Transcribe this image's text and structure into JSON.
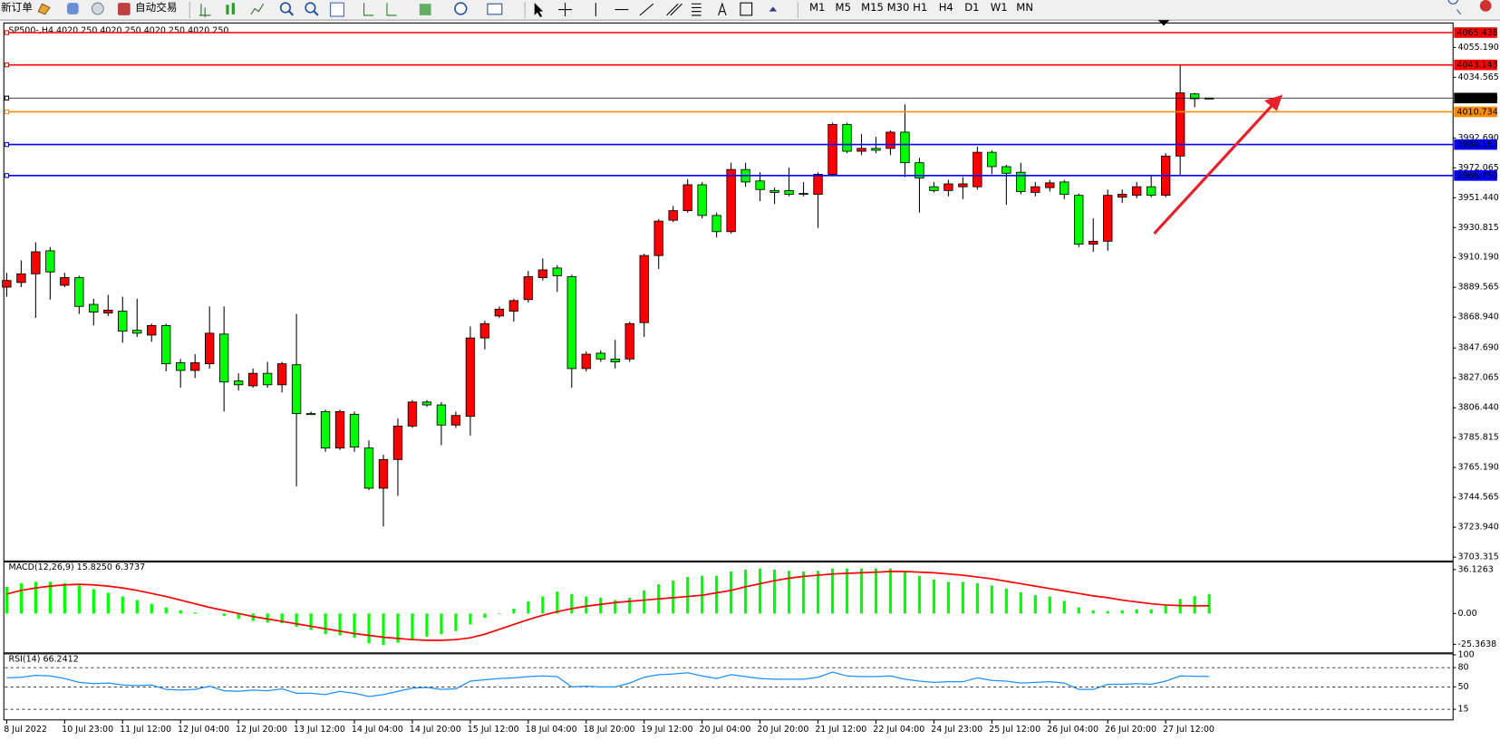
{
  "toolbar": {
    "new_order": "新订单",
    "auto_trading": "自动交易",
    "timeframes": [
      "M1",
      "M5",
      "M15",
      "M30",
      "H1",
      "H4",
      "D1",
      "W1",
      "MN"
    ]
  },
  "chart_data": [
    {
      "type": "candlestick",
      "title": "SP500-,H4  4020.250 4020.250 4020.250 4020.250",
      "categories": [
        "8 Jul 2022",
        null,
        null,
        null,
        "10 Jul 23:00",
        null,
        null,
        null,
        "11 Jul 12:00",
        null,
        null,
        null,
        "12 Jul 04:00",
        null,
        null,
        null,
        "12 Jul 20:00",
        null,
        null,
        null,
        "13 Jul 12:00",
        null,
        null,
        null,
        "14 Jul 04:00",
        null,
        null,
        null,
        "14 Jul 20:00",
        null,
        null,
        null,
        "15 Jul 12:00",
        null,
        null,
        null,
        "18 Jul 04:00",
        null,
        null,
        null,
        "18 Jul 20:00",
        null,
        null,
        null,
        "19 Jul 12:00",
        null,
        null,
        null,
        "20 Jul 04:00",
        null,
        null,
        null,
        "20 Jul 20:00",
        null,
        null,
        null,
        "21 Jul 12:00",
        null,
        null,
        null,
        "22 Jul 04:00",
        null,
        null,
        null,
        "24 Jul 23:00",
        null,
        null,
        null,
        "25 Jul 12:00",
        null,
        null,
        null,
        "26 Jul 04:00",
        null,
        null,
        null,
        "26 Jul 20:00",
        null,
        null,
        null,
        "27 Jul 12:00",
        null,
        null,
        null
      ],
      "open": [
        3889.7,
        3892.9,
        3898.9,
        3914.8,
        3891.0,
        3896.3,
        3877.8,
        3871.8,
        3873.1,
        3859.9,
        3856.6,
        3863.2,
        3837.5,
        3832.2,
        3836.8,
        3857.3,
        3824.9,
        3821.6,
        3830.2,
        3822.3,
        3836.1,
        3802.4,
        3803.8,
        3778.6,
        3801.8,
        3778.6,
        3750.9,
        3770.7,
        3793.8,
        3810.4,
        3808.4,
        3794.5,
        3800.5,
        3854.6,
        3869.8,
        3873.1,
        3881.1,
        3896.3,
        3902.9,
        3896.9,
        3833.5,
        3844.1,
        3840.1,
        3840.1,
        3865.2,
        3911.5,
        3935.9,
        3942.5,
        3960.4,
        3939.2,
        3928.0,
        3970.9,
        3963.0,
        3956.4,
        3956.4,
        3954.4,
        3953.8,
        3967.6,
        4002.0,
        3983.5,
        3985.5,
        3985.5,
        3996.7,
        3975.6,
        3959.0,
        3956.4,
        3959.0,
        3959.0,
        3982.8,
        3972.9,
        3969.0,
        3955.1,
        3958.4,
        3962.3,
        3953.1,
        3919.4,
        3921.4,
        3951.8,
        3953.1,
        3959.0,
        3953.1,
        3980.2,
        4023.1,
        4020.25
      ],
      "high": [
        3899.6,
        3908.2,
        3920.7,
        3917.4,
        3899.6,
        3897.6,
        3881.7,
        3884.4,
        3883.1,
        3881.7,
        3864.5,
        3864.5,
        3840.1,
        3843.4,
        3876.4,
        3876.4,
        3830.2,
        3833.5,
        3838.1,
        3838.1,
        3871.2,
        3803.8,
        3805.1,
        3805.1,
        3803.8,
        3783.9,
        3774.0,
        3799.1,
        3811.7,
        3811.7,
        3810.4,
        3803.8,
        3862.6,
        3866.5,
        3876.4,
        3881.7,
        3900.9,
        3909.5,
        3904.9,
        3898.3,
        3845.4,
        3846.0,
        3853.3,
        3865.9,
        3912.8,
        3936.6,
        3945.8,
        3964.3,
        3962.3,
        3941.2,
        3975.6,
        3975.6,
        3969.0,
        3958.4,
        3972.3,
        3962.3,
        3969.0,
        4003.3,
        4003.3,
        3995.4,
        3993.4,
        3998.0,
        4015.9,
        3978.9,
        3962.3,
        3963.7,
        3965.7,
        3986.8,
        3984.2,
        3974.2,
        3975.6,
        3962.3,
        3963.7,
        3963.7,
        3954.4,
        3937.2,
        3957.1,
        3957.1,
        3962.3,
        3967.0,
        3982.2,
        4043.0,
        4023.8,
        4020.25
      ],
      "low": [
        3883.1,
        3889.7,
        3868.5,
        3881.1,
        3889.7,
        3871.2,
        3863.2,
        3869.8,
        3851.3,
        3855.3,
        3852.0,
        3831.5,
        3820.3,
        3826.9,
        3833.5,
        3803.8,
        3818.3,
        3820.3,
        3820.3,
        3817.0,
        3752.2,
        3801.8,
        3776.0,
        3777.3,
        3776.0,
        3749.6,
        3724.5,
        3745.6,
        3792.5,
        3807.1,
        3780.6,
        3792.5,
        3787.2,
        3846.7,
        3868.5,
        3865.9,
        3879.1,
        3894.3,
        3886.4,
        3820.3,
        3831.5,
        3838.1,
        3833.5,
        3838.1,
        3855.3,
        3902.2,
        3934.6,
        3941.2,
        3937.2,
        3924.0,
        3926.7,
        3959.0,
        3949.1,
        3947.1,
        3952.4,
        3952.4,
        3930.6,
        3966.3,
        3982.2,
        3980.9,
        3982.2,
        3980.9,
        3965.7,
        3941.2,
        3955.1,
        3952.4,
        3950.5,
        3957.1,
        3967.6,
        3946.5,
        3953.8,
        3952.4,
        3955.7,
        3950.5,
        3917.4,
        3914.1,
        3914.8,
        3947.8,
        3951.1,
        3951.8,
        3951.8,
        3967.0,
        4013.9,
        4020.25
      ],
      "close": [
        3894.3,
        3898.9,
        3914.1,
        3900.2,
        3896.3,
        3876.4,
        3872.5,
        3873.8,
        3859.3,
        3857.9,
        3863.2,
        3836.8,
        3832.2,
        3837.5,
        3857.9,
        3824.2,
        3822.3,
        3830.2,
        3822.3,
        3836.8,
        3802.4,
        3802.0,
        3778.6,
        3803.8,
        3779.3,
        3750.9,
        3770.7,
        3793.8,
        3810.4,
        3808.4,
        3794.5,
        3801.1,
        3854.6,
        3864.5,
        3874.5,
        3880.4,
        3896.9,
        3901.6,
        3897.6,
        3833.5,
        3843.4,
        3840.1,
        3838.1,
        3864.5,
        3911.5,
        3935.3,
        3942.5,
        3960.4,
        3939.2,
        3928.0,
        3970.9,
        3962.3,
        3957.1,
        3955.1,
        3953.8,
        3953.8,
        3967.6,
        4002.0,
        3983.5,
        3985.5,
        3984.2,
        3996.7,
        3975.6,
        3965.0,
        3956.4,
        3961.0,
        3961.0,
        3982.8,
        3972.9,
        3968.3,
        3955.7,
        3959.0,
        3961.7,
        3953.8,
        3919.4,
        3921.4,
        3953.1,
        3953.8,
        3959.0,
        3953.1,
        3980.2,
        4023.8,
        4019.8,
        4020.25
      ],
      "up_color": "#ff0000",
      "down_color": "#00ff00",
      "ylim": [
        3701.3,
        4070.1
      ],
      "yticks": [
        {
          "value": 4055.19,
          "label": "4055.190"
        },
        4034.565,
        {
          "value": 3992.69,
          "label": "3992.690"
        },
        3972.065,
        {
          "value": 3951.44,
          "label": "3951.440"
        },
        3930.815,
        {
          "value": 3910.19,
          "label": "3910.190"
        },
        3889.565,
        {
          "value": 3868.94,
          "label": "3868.940"
        },
        {
          "value": 3847.69,
          "label": "3847.690"
        },
        3827.065,
        {
          "value": 3806.44,
          "label": "3806.440"
        },
        3785.815,
        {
          "value": 3765.19,
          "label": "3765.190"
        },
        3744.565,
        {
          "value": 3723.94,
          "label": "3723.940"
        },
        3703.315
      ],
      "hlines": [
        {
          "value": 4065.438,
          "color": "#ff0000"
        },
        {
          "value": 4043.143,
          "color": "#ff0000"
        },
        {
          "value": 4020.25,
          "label": "4020.250",
          "color": "#000000"
        },
        {
          "value": 4010.734,
          "color": "#ff8c00"
        },
        {
          "value": 3988.163,
          "color": "#0000ff"
        },
        {
          "value": 3966.75,
          "label": "3966.750",
          "color": "#0000ff"
        }
      ]
    },
    {
      "type": "macd",
      "title": "MACD(12,26,9) 15.8250 6.3737",
      "series": [
        {
          "type": "bar",
          "color": "#00ff00",
          "values": [
            22,
            25,
            26,
            26,
            25,
            23,
            20,
            17,
            14,
            11,
            8,
            5,
            2.6,
            1,
            0.3,
            -2,
            -4.4,
            -6,
            -7.5,
            -8,
            -11,
            -13.5,
            -17,
            -18,
            -20,
            -24.5,
            -26,
            -24,
            -21.5,
            -19,
            -17,
            -14.5,
            -9,
            -3.6,
            -0.5,
            4,
            10,
            14,
            18,
            16,
            14,
            13,
            11,
            13,
            19,
            24,
            27,
            30,
            31,
            31,
            34.5,
            36,
            37,
            36,
            35,
            34.5,
            35,
            37,
            37,
            37,
            37,
            37,
            34.5,
            31,
            28,
            26,
            26,
            25,
            23,
            20.5,
            17.4,
            15,
            14,
            10.4,
            5,
            2.6,
            1.9,
            2.6,
            3.4,
            3.4,
            7.3,
            12,
            14.3,
            15.825
          ]
        },
        {
          "type": "line",
          "color": "#ff0000",
          "values": [
            16,
            19,
            21,
            22.5,
            23.5,
            24,
            23.5,
            22.5,
            21,
            19,
            16.5,
            14,
            11,
            8,
            5,
            2.5,
            0,
            -2.5,
            -4.5,
            -6.5,
            -8.5,
            -10.5,
            -12.5,
            -14.5,
            -16.5,
            -18,
            -19.5,
            -20.5,
            -21.5,
            -22,
            -22,
            -21.5,
            -20,
            -17,
            -13,
            -9,
            -5,
            -1.5,
            1.5,
            4,
            6,
            7.5,
            9,
            10,
            11,
            12,
            13,
            14,
            15,
            17,
            19,
            22,
            24.5,
            27,
            29,
            30.5,
            31.5,
            32.5,
            33,
            33.5,
            34,
            34.5,
            34.5,
            34,
            33.5,
            32.5,
            31.5,
            30,
            28.5,
            26.5,
            24.5,
            22.5,
            20.5,
            18.5,
            16.5,
            14.5,
            13,
            11,
            9.5,
            8,
            7,
            6.5,
            6.3,
            6.3737
          ]
        }
      ],
      "ylim": [
        -31.6,
        41.6
      ],
      "yticks": [
        36.1263,
        {
          "value": 0,
          "label": "0.00"
        },
        -25.3638
      ]
    },
    {
      "type": "line",
      "title": "RSI(14) 66.2412",
      "color": "#1e90ff",
      "values": [
        64,
        65,
        68,
        67,
        63,
        57,
        55,
        56,
        53,
        52,
        53,
        46,
        45,
        46,
        51,
        44,
        43,
        45,
        44,
        47,
        40,
        40,
        38,
        43,
        40,
        35,
        38,
        43,
        48,
        49,
        46,
        47,
        59,
        61,
        63,
        64,
        66,
        67,
        66,
        50,
        51,
        50,
        50,
        56,
        65,
        69,
        70,
        72,
        67,
        63,
        69,
        66,
        63,
        62,
        62,
        62,
        65,
        73,
        67,
        66,
        66,
        67,
        62,
        59,
        57,
        58,
        58,
        64,
        60,
        59,
        56,
        57,
        58,
        56,
        46,
        46,
        54,
        54,
        55,
        54,
        59,
        67,
        66.5,
        66.2412
      ],
      "ylim": [
        0,
        100
      ],
      "yticks": [
        100,
        80,
        50,
        15
      ],
      "grid": "dashed"
    }
  ]
}
